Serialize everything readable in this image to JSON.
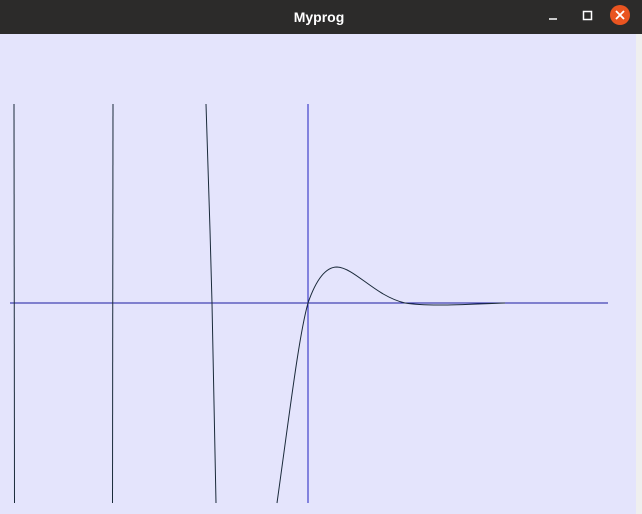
{
  "window": {
    "title": "Myprog"
  }
}
